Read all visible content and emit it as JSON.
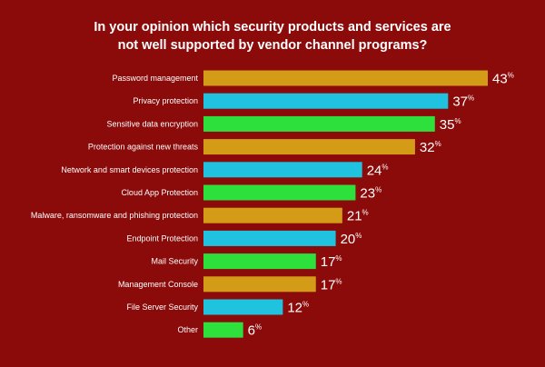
{
  "chart_data": {
    "type": "bar",
    "orientation": "horizontal",
    "title": "In your opinion which security products and services are not well supported by vendor channel programs?",
    "title_lines": [
      "In your opinion which security products and services are",
      "not well supported by vendor channel programs?"
    ],
    "categories": [
      "Password management",
      "Privacy protection",
      "Sensitive data encryption",
      "Protection against new threats",
      "Network and smart devices protection",
      "Cloud App Protection",
      "Malware, ransomware and phishing protection",
      "Endpoint Protection",
      "Mail Security",
      "Management Console",
      "File Server Security",
      "Other"
    ],
    "values": [
      43,
      37,
      35,
      32,
      24,
      23,
      21,
      20,
      17,
      17,
      12,
      6
    ],
    "value_suffix": "%",
    "bar_colors": [
      "#d49b17",
      "#1fc3df",
      "#2ee03c",
      "#d49b17",
      "#1fc3df",
      "#2ee03c",
      "#d49b17",
      "#1fc3df",
      "#2ee03c",
      "#d49b17",
      "#1fc3df",
      "#2ee03c"
    ],
    "xlim": [
      0,
      43
    ],
    "grid": false,
    "legend": "none"
  },
  "colors": {
    "background": "#8b0a0a",
    "text": "#ffffff"
  }
}
